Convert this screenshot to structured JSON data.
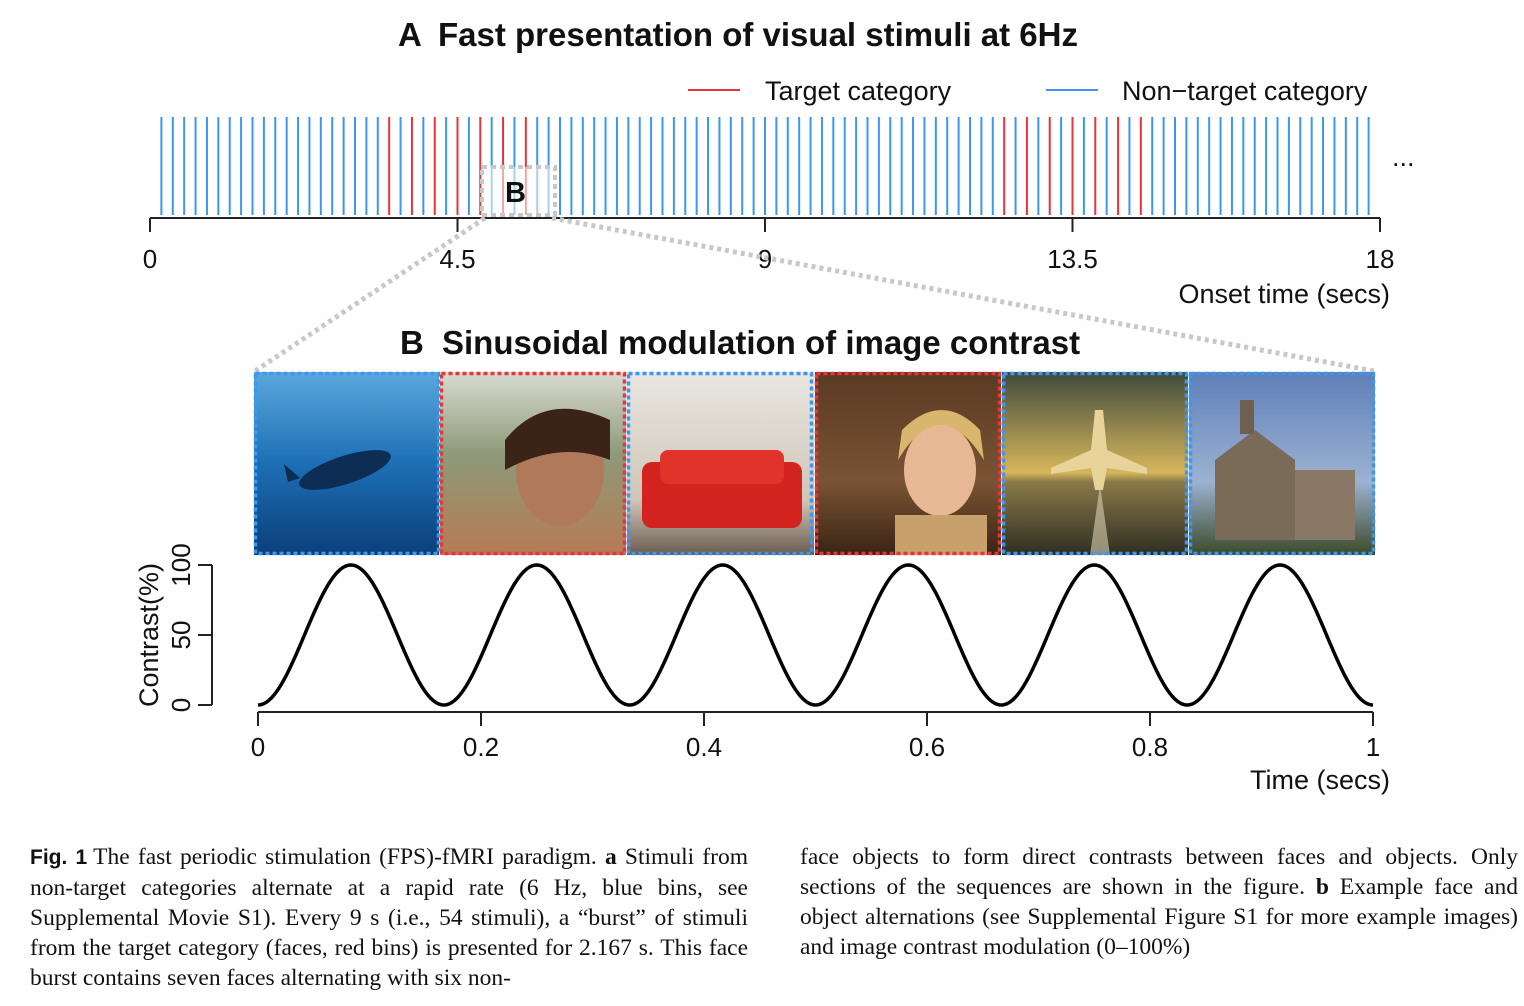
{
  "figure": {
    "panel_a": {
      "title_letter": "A",
      "title": "Fast presentation of visual stimuli at 6Hz",
      "legend": {
        "target": "Target category",
        "nontarget": "Non−target category"
      },
      "ellipsis": "...",
      "inset_label": "B",
      "colors": {
        "target": "#e8343a",
        "nontarget": "#3b97f0"
      }
    },
    "panel_b": {
      "title_letter": "B",
      "title": "Sinusoidal modulation of image contrast",
      "images": [
        {
          "name": "whale-image",
          "category": "non-target",
          "frame_color": "#3b97f0"
        },
        {
          "name": "man-face-image",
          "category": "target",
          "frame_color": "#e8343a"
        },
        {
          "name": "red-sofa-image",
          "category": "non-target",
          "frame_color": "#3b97f0"
        },
        {
          "name": "woman-face-image",
          "category": "target",
          "frame_color": "#e8343a"
        },
        {
          "name": "airplane-image",
          "category": "non-target",
          "frame_color": "#3b97f0"
        },
        {
          "name": "chapel-image",
          "category": "non-target",
          "frame_color": "#3b97f0"
        }
      ]
    }
  },
  "chart_data": [
    {
      "type": "event-raster",
      "xlabel": "Onset time (secs)",
      "xlim": [
        0,
        18
      ],
      "xticks": [
        "0",
        "4.5",
        "9",
        "13.5",
        "18"
      ],
      "rate_hz": 6,
      "series": [
        {
          "name": "Target category",
          "color": "#e8343a",
          "onsets": [
            3.5,
            3.833,
            4.167,
            4.5,
            4.833,
            5.167,
            5.5,
            12.5,
            12.833,
            13.167,
            13.5,
            13.833,
            14.167,
            14.5
          ]
        },
        {
          "name": "Non−target category",
          "color": "#3b97f0",
          "onsets_rule": "all 6Hz bins from 0.167 to 17.833 s not in Target category"
        }
      ]
    },
    {
      "type": "line",
      "xlabel": "Time (secs)",
      "ylabel": "Contrast(%)",
      "xlim": [
        0,
        1
      ],
      "ylim": [
        0,
        100
      ],
      "xticks": [
        "0",
        "0.2",
        "0.4",
        "0.6",
        "0.8",
        "1"
      ],
      "yticks": [
        "0",
        "50",
        "100"
      ],
      "series": [
        {
          "name": "",
          "function": "50*(1-cos(2*pi*6*t))",
          "frequency_hz": 6
        }
      ]
    }
  ],
  "caption": {
    "label": "Fig. 1",
    "left_text": "The fast periodic stimulation (FPS)-fMRI paradigm. ",
    "a_letter": "a",
    "left_text2": " Stimuli from non-target categories alternate at a rapid rate (6 Hz, blue bins, see Supplemental Movie S1). Every 9 s (i.e., 54 stimuli), a “burst” of stimuli from the target category (faces, red bins) is presented for 2.167 s. This face burst contains seven faces alternating with six non-",
    "right_text": "face objects to form direct contrasts between faces and objects. Only sections of the sequences are shown in the figure. ",
    "b_letter": "b",
    "right_text2": " Example face and object alternations (see Supplemental Figure S1 for more example images) and image contrast modulation (0–100%)"
  }
}
